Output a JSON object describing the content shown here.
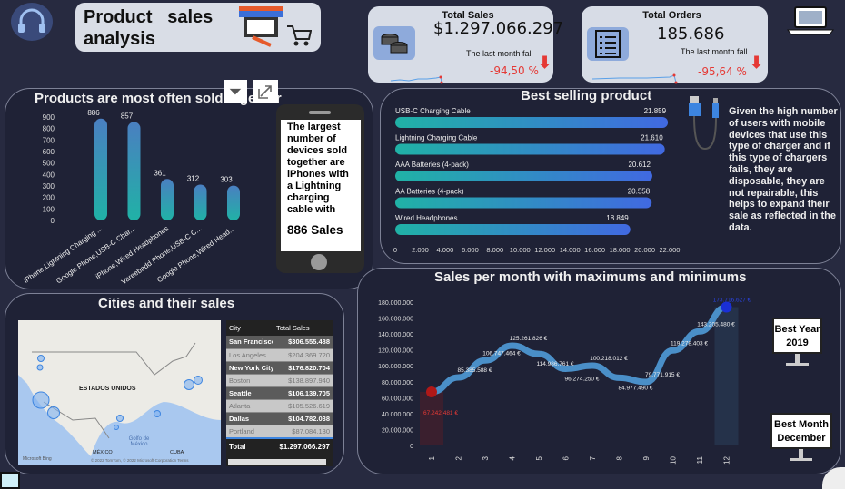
{
  "header": {
    "title_line1": "Product   sales",
    "title_line2": "analysis"
  },
  "kpis": [
    {
      "title": "Total Sales",
      "value": "$1.297.066.297",
      "note": "The last month fall",
      "change": "-94,50 %",
      "icon": "coins-icon"
    },
    {
      "title": "Total Orders",
      "value": "185.686",
      "note": "The last month fall",
      "change": "-95,64 %",
      "icon": "checklist-icon"
    }
  ],
  "colors": {
    "background": "#272a40",
    "panel": "#1f2236",
    "teal": "#20b2a6",
    "blue": "#4a7fc1",
    "bar_blue": "#3f66e0",
    "min": "#d81b1b",
    "max": "#1a2fd6",
    "negative": "#e53935"
  },
  "visual_toolbar": {
    "filter": "filter-icon",
    "focus": "focus-mode-icon"
  },
  "chart_data": [
    {
      "type": "bar",
      "title": "Products are most often sold together",
      "categories": [
        "iPhone,Lightning Charging ...",
        "Google Phone,USB-C Char...",
        "iPhone,Wired Headphones",
        "Vareebadd Phone,USB-C C...",
        "Google Phone,Wired Head..."
      ],
      "values": [
        886,
        857,
        361,
        312,
        303
      ],
      "ylim": [
        0,
        900
      ],
      "yticks": [
        "0",
        "100",
        "200",
        "300",
        "400",
        "500",
        "600",
        "700",
        "800",
        "900"
      ],
      "labels": [
        "886",
        "857",
        "361",
        "312",
        "303"
      ]
    },
    {
      "type": "bar",
      "orientation": "horizontal",
      "title": "Best selling product",
      "categories": [
        "USB-C Charging Cable",
        "Lightning Charging Cable",
        "AAA Batteries (4-pack)",
        "AA Batteries (4-pack)",
        "Wired Headphones"
      ],
      "values": [
        21859,
        21610,
        20612,
        20558,
        18849
      ],
      "labels": [
        "21.859",
        "21.610",
        "20.612",
        "20.558",
        "18.849"
      ],
      "xlim": [
        0,
        22000
      ],
      "xticks": [
        "0",
        "2.000",
        "4.000",
        "6.000",
        "8.000",
        "10.000",
        "12.000",
        "14.000",
        "16.000",
        "18.000",
        "20.000",
        "22.000"
      ]
    },
    {
      "type": "line",
      "title": "Sales per month with maximums and minimums",
      "x": [
        "1",
        "2",
        "3",
        "4",
        "5",
        "6",
        "7",
        "8",
        "9",
        "10",
        "11",
        "12"
      ],
      "values": [
        67242481,
        85385588,
        106747464,
        125261826,
        114986761,
        96274250,
        100218012,
        84977490,
        79771915,
        119278403,
        143205480,
        173716627
      ],
      "labels": [
        "67.242.481 €",
        "85.385.588 €",
        "106.747.464 €",
        "125.261.826 €",
        "114.986.761 €",
        "96.274.250 €",
        "100.218.012 €",
        "84.977.490 €",
        "79.771.915 €",
        "119.278.403 €",
        "143.205.480 €",
        "173.716.627 €"
      ],
      "ylim": [
        0,
        180000000
      ],
      "yticks": [
        "0",
        "20.000.000",
        "40.000.000",
        "60.000.000",
        "80.000.000",
        "100.000.000",
        "120.000.000",
        "140.000.000",
        "160.000.000",
        "180.000.000"
      ],
      "min_month": 1,
      "max_month": 12
    }
  ],
  "phone_note": {
    "text": "The largest number of devices sold together are iPhones with a Lightning charging cable with",
    "highlight": "886 Sales"
  },
  "cable_note": "Given the high number of users with mobile devices that use this type of charger and if this type of chargers fails, they are disposable, they are not repairable, this helps to expand their sale as reflected in the data.",
  "cities": {
    "title": "Cities and their sales",
    "map": {
      "country": "ESTADOS UNIDOS",
      "mexico": "MÉXICO",
      "gulf": "Golfo de México",
      "cuba": "CUBA",
      "attribution": "© 2022 TomTom, © 2022 Microsoft Corporation  Terms",
      "brand": "Microsoft Bing"
    },
    "table": {
      "headers": [
        "City",
        "Total Sales"
      ],
      "rows": [
        [
          "San Francisco",
          "$306.555.488"
        ],
        [
          "Los Angeles",
          "$204.369.720"
        ],
        [
          "New York City",
          "$176.820.704"
        ],
        [
          "Boston",
          "$138.897.940"
        ],
        [
          "Seattle",
          "$106.139.705"
        ],
        [
          "Atlanta",
          "$105.526.619"
        ],
        [
          "Dallas",
          "$104.782.038"
        ],
        [
          "Portland",
          "$87.084.130"
        ]
      ],
      "total_label": "Total",
      "total_value": "$1.297.066.297"
    }
  },
  "best": {
    "year_label": "Best Year",
    "year": "2019",
    "month_label": "Best Month",
    "month": "December"
  }
}
